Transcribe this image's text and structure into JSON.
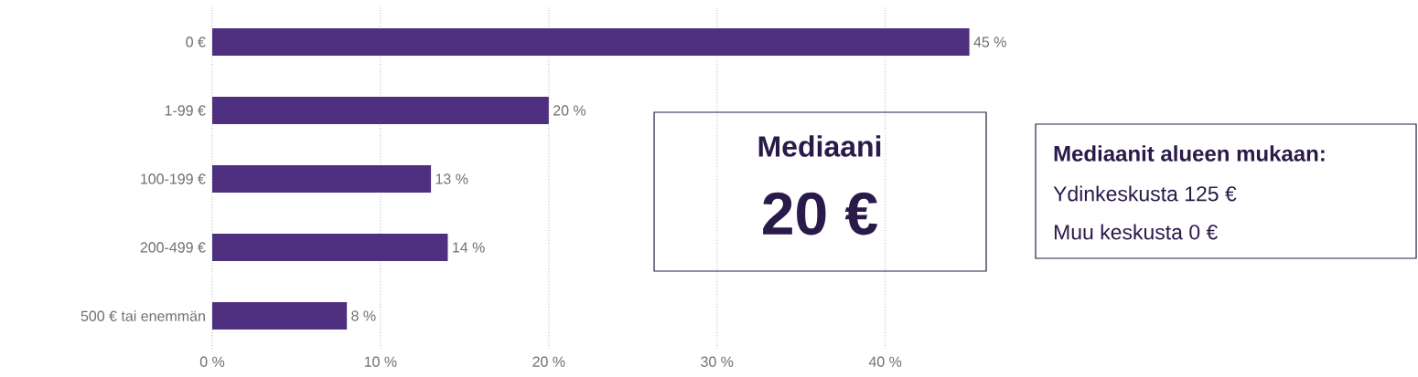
{
  "chart_data": {
    "type": "bar",
    "orientation": "horizontal",
    "categories": [
      "0 €",
      "1-99 €",
      "100-199 €",
      "200-499 €",
      "500 € tai enemmän"
    ],
    "values": [
      45,
      20,
      13,
      14,
      8
    ],
    "value_labels": [
      "45 %",
      "20 %",
      "13 %",
      "14 %",
      "8 %"
    ],
    "color": "#4f2f7f",
    "xlim": [
      0,
      46
    ],
    "xticks": [
      {
        "value": 0,
        "label": "0 %"
      },
      {
        "value": 10,
        "label": "10 %"
      },
      {
        "value": 20,
        "label": "20 %"
      },
      {
        "value": 30,
        "label": "30 %"
      },
      {
        "value": 40,
        "label": "40 %"
      }
    ],
    "grid": "x",
    "annotations": [
      "Mediaani",
      "20 €",
      "Mediaanit alueen mukaan:",
      "Ydinkeskusta 125 €",
      "Muu keskusta 0 €"
    ]
  }
}
